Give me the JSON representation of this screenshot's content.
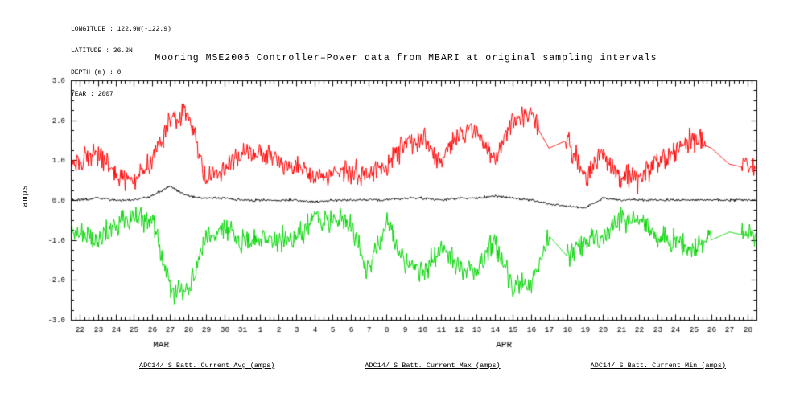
{
  "meta": {
    "lines": [
      "LONGITUDE : 122.9W(-122.9)",
      "LATITUDE : 36.2N",
      "DEPTH (m) : 0",
      "YEAR : 2007"
    ]
  },
  "title": "Mooring MSE2006 Controller–Power data from MBARI at original sampling intervals",
  "chart_data": {
    "type": "line",
    "title": "Mooring MSE2006 Controller–Power data from MBARI at original sampling intervals",
    "ylabel": "amps",
    "ylim": [
      -3.0,
      3.0
    ],
    "y_tick_labels": [
      "3.0",
      "2.0",
      "1.0",
      "0.0",
      "-1.0",
      "-2.0",
      "-3.0"
    ],
    "y_tick_values": [
      3.0,
      2.0,
      1.0,
      0.0,
      -1.0,
      -2.0,
      -3.0
    ],
    "y_minor_step": 0.25,
    "x_minor_step": 0.25,
    "grid": false,
    "legend_position": "bottom",
    "x_tick_labels": [
      "22",
      "23",
      "24",
      "25",
      "26",
      "27",
      "28",
      "29",
      "30",
      "31",
      "1",
      "2",
      "3",
      "4",
      "5",
      "6",
      "7",
      "8",
      "9",
      "10",
      "11",
      "12",
      "13",
      "14",
      "15",
      "16",
      "17",
      "18",
      "19",
      "20",
      "21",
      "22",
      "23",
      "24",
      "25",
      "26",
      "27",
      "28"
    ],
    "month_labels": [
      {
        "label": "MAR",
        "start": 0,
        "end": 9
      },
      {
        "label": "APR",
        "start": 10,
        "end": 37
      }
    ],
    "series": [
      {
        "name": "ADC14/ S Batt. Current Avg (amps)",
        "color": "#000000",
        "noise": 0.025,
        "smooth_ranges": [],
        "values": [
          0,
          0.05,
          0,
          0,
          0.1,
          0.35,
          0.1,
          0.05,
          0.05,
          0,
          0,
          0,
          0,
          -0.05,
          0,
          0,
          0,
          0,
          0.05,
          0.05,
          0,
          0.05,
          0.05,
          0.1,
          0.05,
          0,
          -0.1,
          -0.15,
          -0.2,
          0.05,
          0,
          0,
          0,
          0,
          0,
          0,
          0,
          0
        ]
      },
      {
        "name": "ADC14/ S Batt. Current Max (amps)",
        "color": "#ff0000",
        "noise": 0.24,
        "smooth_ranges": [
          [
            25.4,
            26.9
          ],
          [
            34.7,
            36.7
          ]
        ],
        "values": [
          0.9,
          1.2,
          0.6,
          0.5,
          0.9,
          2.0,
          2.2,
          0.5,
          0.8,
          1.2,
          1.2,
          1.0,
          0.8,
          0.55,
          0.7,
          0.7,
          0.6,
          0.9,
          1.4,
          1.6,
          0.9,
          1.7,
          1.7,
          1.0,
          2.0,
          2.1,
          1.3,
          1.5,
          0.6,
          1.1,
          0.6,
          0.5,
          1.0,
          1.2,
          1.5,
          1.3,
          0.9,
          0.8
        ]
      },
      {
        "name": "ADC14/ S Batt. Current Min (amps)",
        "color": "#00d400",
        "noise": 0.24,
        "smooth_ranges": [
          [
            26.0,
            27.0
          ],
          [
            35.0,
            36.7
          ]
        ],
        "values": [
          -0.8,
          -1.0,
          -0.6,
          -0.4,
          -0.5,
          -2.2,
          -2.3,
          -0.9,
          -0.7,
          -1.1,
          -1.0,
          -1.0,
          -0.9,
          -0.5,
          -0.5,
          -0.6,
          -1.8,
          -0.6,
          -1.6,
          -1.8,
          -1.2,
          -1.7,
          -1.8,
          -1.0,
          -2.2,
          -2.1,
          -0.9,
          -1.4,
          -1.0,
          -0.9,
          -0.5,
          -0.5,
          -0.9,
          -1.0,
          -1.2,
          -1.0,
          -0.8,
          -0.9
        ]
      }
    ]
  }
}
